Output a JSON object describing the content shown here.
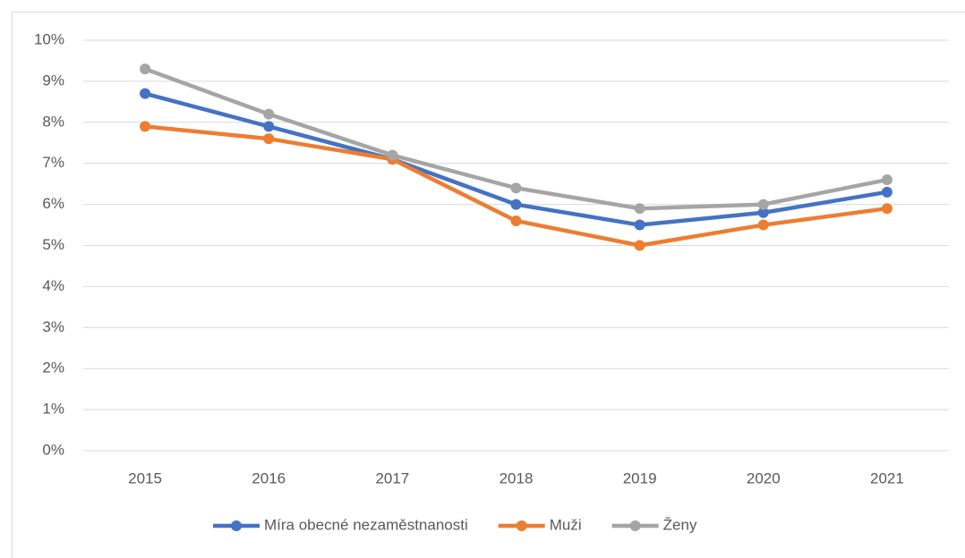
{
  "chart_data": {
    "type": "line",
    "categories": [
      "2015",
      "2016",
      "2017",
      "2018",
      "2019",
      "2020",
      "2021"
    ],
    "series": [
      {
        "name": "Míra obecné nezaměstnanosti",
        "color": "#4472c4",
        "values": [
          8.7,
          7.9,
          7.1,
          6.0,
          5.5,
          5.8,
          6.3
        ]
      },
      {
        "name": "Muži",
        "color": "#ed7d31",
        "values": [
          7.9,
          7.6,
          7.1,
          5.6,
          5.0,
          5.5,
          5.9
        ]
      },
      {
        "name": "Ženy",
        "color": "#a5a5a5",
        "values": [
          9.3,
          8.2,
          7.2,
          6.4,
          5.9,
          6.0,
          6.6
        ]
      }
    ],
    "ylim": [
      0,
      10
    ],
    "yticks": [
      {
        "value": 0,
        "label": "0%"
      },
      {
        "value": 1,
        "label": "1%"
      },
      {
        "value": 2,
        "label": "2%"
      },
      {
        "value": 3,
        "label": "3%"
      },
      {
        "value": 4,
        "label": "4%"
      },
      {
        "value": 5,
        "label": "5%"
      },
      {
        "value": 6,
        "label": "6%"
      },
      {
        "value": 7,
        "label": "7%"
      },
      {
        "value": 8,
        "label": "8%"
      },
      {
        "value": 9,
        "label": "9%"
      },
      {
        "value": 10,
        "label": "10%"
      }
    ],
    "grid": true,
    "legend": "bottom"
  }
}
